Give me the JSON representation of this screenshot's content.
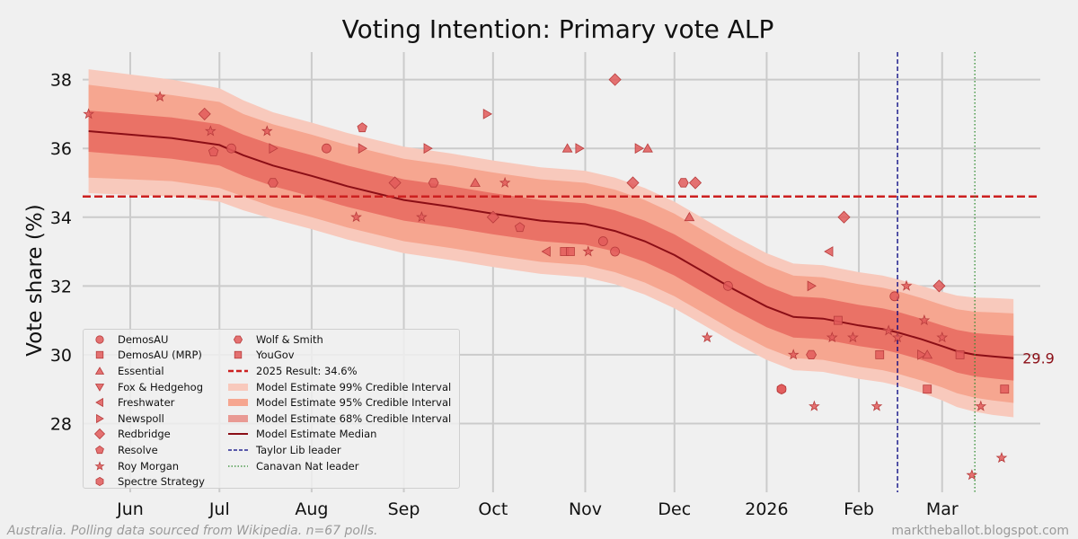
{
  "title": "Voting Intention: Primary vote ALP",
  "footer": {
    "left": "Australia. Polling data sourced from Wikipedia. n=67 polls.",
    "right": "marktheballot.blogspot.com"
  },
  "legend": {
    "col1": [
      {
        "label": "DemosAU",
        "marker": "circle"
      },
      {
        "label": "DemosAU (MRP)",
        "marker": "square"
      },
      {
        "label": "Essential",
        "marker": "triangle-up"
      },
      {
        "label": "Fox & Hedgehog",
        "marker": "triangle-down"
      },
      {
        "label": "Freshwater",
        "marker": "triangle-left"
      },
      {
        "label": "Newspoll",
        "marker": "triangle-right"
      },
      {
        "label": "Redbridge",
        "marker": "diamond"
      },
      {
        "label": "Resolve",
        "marker": "pentagon"
      },
      {
        "label": "Roy Morgan",
        "marker": "star"
      },
      {
        "label": "Spectre Strategy",
        "marker": "hexagon"
      }
    ],
    "col2": [
      {
        "label": "Wolf & Smith",
        "marker": "hexagon2"
      },
      {
        "label": "YouGov",
        "marker": "square"
      },
      {
        "label": "2025 Result: 34.6%",
        "marker": "line-dash-red"
      },
      {
        "label": "Model Estimate 99% Credible Interval",
        "marker": "patch-99"
      },
      {
        "label": "Model Estimate 95% Credible Interval",
        "marker": "patch-95"
      },
      {
        "label": "Model Estimate 68% Credible Interval",
        "marker": "patch-68"
      },
      {
        "label": "Model Estimate Median",
        "marker": "line-median"
      },
      {
        "label": "Taylor Lib leader",
        "marker": "line-dash-navy"
      },
      {
        "label": "Canavan Nat leader",
        "marker": "line-dot-green"
      }
    ]
  },
  "colors": {
    "background": "#f0f0f0",
    "grid": "#cbcbcb",
    "band99": "#f8c9bc",
    "band95": "#f6a690",
    "band68": "#ea7266",
    "median": "#8b0e16",
    "marker": "#e25a5a",
    "result_line": "#cc2020",
    "taylor_line": "#000080",
    "canavan_line": "#2e8b2e"
  },
  "chart_data": {
    "type": "line",
    "title": "Voting Intention: Primary vote ALP",
    "xlabel": "",
    "ylabel": "Vote share (%)",
    "x_unit": "days since 2025-05-01",
    "xlim": [
      36,
      358
    ],
    "ylim": [
      26.0,
      38.8
    ],
    "yticks": [
      28,
      30,
      32,
      34,
      36,
      38
    ],
    "xticks": [
      {
        "label": "Jun",
        "x": 52
      },
      {
        "label": "Jul",
        "x": 82
      },
      {
        "label": "Aug",
        "x": 113
      },
      {
        "label": "Sep",
        "x": 144
      },
      {
        "label": "Oct",
        "x": 174
      },
      {
        "label": "Nov",
        "x": 205
      },
      {
        "label": "Dec",
        "x": 235
      },
      {
        "label": "2026",
        "x": 266
      },
      {
        "label": "Feb",
        "x": 297
      },
      {
        "label": "Mar",
        "x": 325
      }
    ],
    "reference_lines": [
      {
        "name": "2025 Result: 34.6%",
        "orientation": "horizontal",
        "value": 34.6
      },
      {
        "name": "Taylor Lib leader",
        "orientation": "vertical",
        "x": 310
      },
      {
        "name": "Canavan Nat leader",
        "orientation": "vertical",
        "x": 336
      }
    ],
    "model": {
      "x": [
        38,
        52,
        66,
        82,
        90,
        100,
        113,
        125,
        144,
        160,
        174,
        190,
        205,
        215,
        225,
        235,
        245,
        255,
        266,
        275,
        285,
        297,
        305,
        310,
        318,
        325,
        330,
        336,
        342,
        349
      ],
      "median": [
        36.5,
        36.4,
        36.3,
        36.1,
        35.8,
        35.5,
        35.2,
        34.9,
        34.5,
        34.3,
        34.1,
        33.9,
        33.8,
        33.6,
        33.3,
        32.9,
        32.4,
        31.9,
        31.4,
        31.1,
        31.05,
        30.85,
        30.75,
        30.65,
        30.45,
        30.25,
        30.1,
        30.0,
        29.95,
        29.9
      ],
      "hw68": [
        0.6,
        0.6,
        0.6,
        0.6,
        0.6,
        0.6,
        0.6,
        0.6,
        0.6,
        0.6,
        0.6,
        0.6,
        0.6,
        0.6,
        0.6,
        0.6,
        0.6,
        0.6,
        0.6,
        0.6,
        0.6,
        0.6,
        0.6,
        0.6,
        0.6,
        0.6,
        0.62,
        0.63,
        0.64,
        0.65
      ],
      "hw95": [
        1.35,
        1.3,
        1.25,
        1.25,
        1.2,
        1.2,
        1.2,
        1.2,
        1.2,
        1.2,
        1.2,
        1.2,
        1.2,
        1.2,
        1.2,
        1.2,
        1.2,
        1.2,
        1.2,
        1.2,
        1.2,
        1.2,
        1.2,
        1.2,
        1.2,
        1.2,
        1.22,
        1.25,
        1.28,
        1.3
      ],
      "hw99": [
        1.8,
        1.75,
        1.7,
        1.65,
        1.6,
        1.55,
        1.55,
        1.55,
        1.55,
        1.55,
        1.55,
        1.55,
        1.55,
        1.55,
        1.55,
        1.55,
        1.55,
        1.55,
        1.55,
        1.55,
        1.55,
        1.55,
        1.55,
        1.55,
        1.55,
        1.58,
        1.62,
        1.66,
        1.7,
        1.72
      ]
    },
    "end_label": "29.9",
    "polls": [
      {
        "pollster": "Roy Morgan",
        "marker": "star",
        "x": 38,
        "y": 37.0
      },
      {
        "pollster": "Roy Morgan",
        "marker": "star",
        "x": 62,
        "y": 37.5
      },
      {
        "pollster": "Redbridge",
        "marker": "diamond",
        "x": 77,
        "y": 37.0
      },
      {
        "pollster": "Roy Morgan",
        "marker": "star",
        "x": 79,
        "y": 36.5
      },
      {
        "pollster": "Resolve",
        "marker": "pentagon",
        "x": 80,
        "y": 35.9
      },
      {
        "pollster": "DemosAU",
        "marker": "circle",
        "x": 86,
        "y": 36.0
      },
      {
        "pollster": "Roy Morgan",
        "marker": "star",
        "x": 98,
        "y": 36.5
      },
      {
        "pollster": "Newspoll",
        "marker": "triangle-right",
        "x": 100,
        "y": 36.0
      },
      {
        "pollster": "Wolf & Smith",
        "marker": "hexagon2",
        "x": 100,
        "y": 35.0
      },
      {
        "pollster": "DemosAU",
        "marker": "circle",
        "x": 118,
        "y": 36.0
      },
      {
        "pollster": "Roy Morgan",
        "marker": "star",
        "x": 128,
        "y": 34.0
      },
      {
        "pollster": "Resolve",
        "marker": "pentagon",
        "x": 130,
        "y": 36.6
      },
      {
        "pollster": "Newspoll",
        "marker": "triangle-right",
        "x": 130,
        "y": 36.0
      },
      {
        "pollster": "Redbridge",
        "marker": "diamond",
        "x": 141,
        "y": 35.0
      },
      {
        "pollster": "Roy Morgan",
        "marker": "star",
        "x": 150,
        "y": 34.0
      },
      {
        "pollster": "Newspoll",
        "marker": "triangle-right",
        "x": 152,
        "y": 36.0
      },
      {
        "pollster": "Wolf & Smith",
        "marker": "hexagon2",
        "x": 154,
        "y": 35.0
      },
      {
        "pollster": "Essential",
        "marker": "triangle-up",
        "x": 168,
        "y": 35.0
      },
      {
        "pollster": "Newspoll",
        "marker": "triangle-right",
        "x": 172,
        "y": 37.0
      },
      {
        "pollster": "Redbridge",
        "marker": "diamond",
        "x": 174,
        "y": 34.0
      },
      {
        "pollster": "Roy Morgan",
        "marker": "star",
        "x": 178,
        "y": 35.0
      },
      {
        "pollster": "Resolve",
        "marker": "pentagon",
        "x": 183,
        "y": 33.7
      },
      {
        "pollster": "Freshwater",
        "marker": "triangle-left",
        "x": 192,
        "y": 33.0
      },
      {
        "pollster": "DemosAU (MRP)",
        "marker": "square",
        "x": 198,
        "y": 33.0
      },
      {
        "pollster": "YouGov",
        "marker": "square",
        "x": 200,
        "y": 33.0
      },
      {
        "pollster": "Essential",
        "marker": "triangle-up",
        "x": 199,
        "y": 36.0
      },
      {
        "pollster": "Newspoll",
        "marker": "triangle-right",
        "x": 203,
        "y": 36.0
      },
      {
        "pollster": "Roy Morgan",
        "marker": "star",
        "x": 206,
        "y": 33.0
      },
      {
        "pollster": "DemosAU",
        "marker": "circle",
        "x": 211,
        "y": 33.3
      },
      {
        "pollster": "Redbridge",
        "marker": "diamond",
        "x": 215,
        "y": 38.0
      },
      {
        "pollster": "DemosAU",
        "marker": "circle",
        "x": 215,
        "y": 33.0
      },
      {
        "pollster": "Redbridge",
        "marker": "diamond",
        "x": 221,
        "y": 35.0
      },
      {
        "pollster": "Newspoll",
        "marker": "triangle-right",
        "x": 223,
        "y": 36.0
      },
      {
        "pollster": "Essential",
        "marker": "triangle-up",
        "x": 226,
        "y": 36.0
      },
      {
        "pollster": "Wolf & Smith",
        "marker": "hexagon2",
        "x": 238,
        "y": 35.0
      },
      {
        "pollster": "Redbridge",
        "marker": "diamond",
        "x": 242,
        "y": 35.0
      },
      {
        "pollster": "Essential",
        "marker": "triangle-up",
        "x": 240,
        "y": 34.0
      },
      {
        "pollster": "Roy Morgan",
        "marker": "star",
        "x": 246,
        "y": 30.5
      },
      {
        "pollster": "DemosAU",
        "marker": "circle",
        "x": 253,
        "y": 32.0
      },
      {
        "pollster": "Spectre Strategy",
        "marker": "hexagon",
        "x": 271,
        "y": 29.0
      },
      {
        "pollster": "Roy Morgan",
        "marker": "star",
        "x": 275,
        "y": 30.0
      },
      {
        "pollster": "Newspoll",
        "marker": "triangle-right",
        "x": 281,
        "y": 32.0
      },
      {
        "pollster": "Wolf & Smith",
        "marker": "hexagon2",
        "x": 281,
        "y": 30.0
      },
      {
        "pollster": "Roy Morgan",
        "marker": "star",
        "x": 282,
        "y": 28.5
      },
      {
        "pollster": "Freshwater",
        "marker": "triangle-left",
        "x": 287,
        "y": 33.0
      },
      {
        "pollster": "Roy Morgan",
        "marker": "star",
        "x": 288,
        "y": 30.5
      },
      {
        "pollster": "YouGov",
        "marker": "square",
        "x": 290,
        "y": 31.0
      },
      {
        "pollster": "Redbridge",
        "marker": "diamond",
        "x": 292,
        "y": 34.0
      },
      {
        "pollster": "Roy Morgan",
        "marker": "star",
        "x": 295,
        "y": 30.5
      },
      {
        "pollster": "Roy Morgan",
        "marker": "star",
        "x": 303,
        "y": 28.5
      },
      {
        "pollster": "YouGov",
        "marker": "square",
        "x": 304,
        "y": 30.0
      },
      {
        "pollster": "Roy Morgan",
        "marker": "star",
        "x": 307,
        "y": 30.7
      },
      {
        "pollster": "DemosAU",
        "marker": "circle",
        "x": 309,
        "y": 31.7
      },
      {
        "pollster": "Roy Morgan",
        "marker": "star",
        "x": 310,
        "y": 30.5
      },
      {
        "pollster": "Roy Morgan",
        "marker": "star",
        "x": 313,
        "y": 32.0
      },
      {
        "pollster": "Newspoll",
        "marker": "triangle-right",
        "x": 318,
        "y": 30.0
      },
      {
        "pollster": "Roy Morgan",
        "marker": "star",
        "x": 319,
        "y": 31.0
      },
      {
        "pollster": "Essential",
        "marker": "triangle-up",
        "x": 320,
        "y": 30.0
      },
      {
        "pollster": "YouGov",
        "marker": "square",
        "x": 320,
        "y": 29.0
      },
      {
        "pollster": "Redbridge",
        "marker": "diamond",
        "x": 324,
        "y": 32.0
      },
      {
        "pollster": "Roy Morgan",
        "marker": "star",
        "x": 325,
        "y": 30.5
      },
      {
        "pollster": "YouGov",
        "marker": "square",
        "x": 331,
        "y": 30.0
      },
      {
        "pollster": "Roy Morgan",
        "marker": "star",
        "x": 335,
        "y": 26.5
      },
      {
        "pollster": "Roy Morgan",
        "marker": "star",
        "x": 338,
        "y": 28.5
      },
      {
        "pollster": "Roy Morgan",
        "marker": "star",
        "x": 345,
        "y": 27.0
      },
      {
        "pollster": "YouGov",
        "marker": "square",
        "x": 346,
        "y": 29.0
      },
      {
        "pollster": "DemosAU",
        "marker": "circle",
        "x": 271,
        "y": 29.0
      }
    ]
  }
}
